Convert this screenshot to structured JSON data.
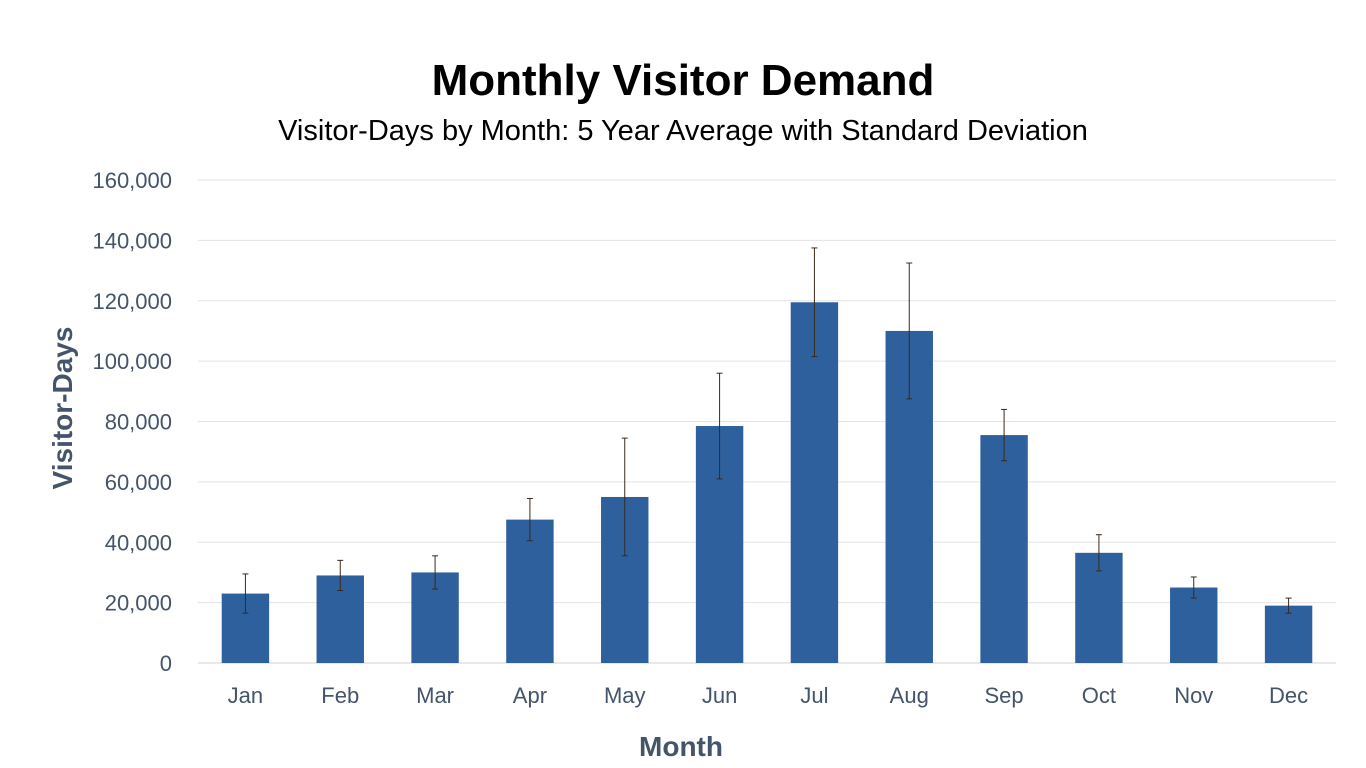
{
  "chart_data": {
    "type": "bar",
    "title": "Monthly Visitor Demand",
    "subtitle": "Visitor-Days by Month: 5 Year Average with Standard Deviation",
    "xlabel": "Month",
    "ylabel": "Visitor-Days",
    "categories": [
      "Jan",
      "Feb",
      "Mar",
      "Apr",
      "May",
      "Jun",
      "Jul",
      "Aug",
      "Sep",
      "Oct",
      "Nov",
      "Dec"
    ],
    "values": [
      23000,
      29000,
      30000,
      47500,
      55000,
      78500,
      119500,
      110000,
      75500,
      36500,
      25000,
      19000
    ],
    "error": [
      6500,
      5000,
      5500,
      7000,
      19500,
      17500,
      18000,
      22500,
      8500,
      6000,
      3500,
      2500
    ],
    "ylim": [
      0,
      160000
    ],
    "yticks": [
      0,
      20000,
      40000,
      60000,
      80000,
      100000,
      120000,
      140000,
      160000
    ],
    "ytick_labels": [
      "0",
      "20,000",
      "40,000",
      "60,000",
      "80,000",
      "100,000",
      "120,000",
      "140,000",
      "160,000"
    ],
    "grid": true,
    "legend": "none",
    "bar_color": "#2e609e",
    "error_bar_color": "#3a2a1a"
  }
}
